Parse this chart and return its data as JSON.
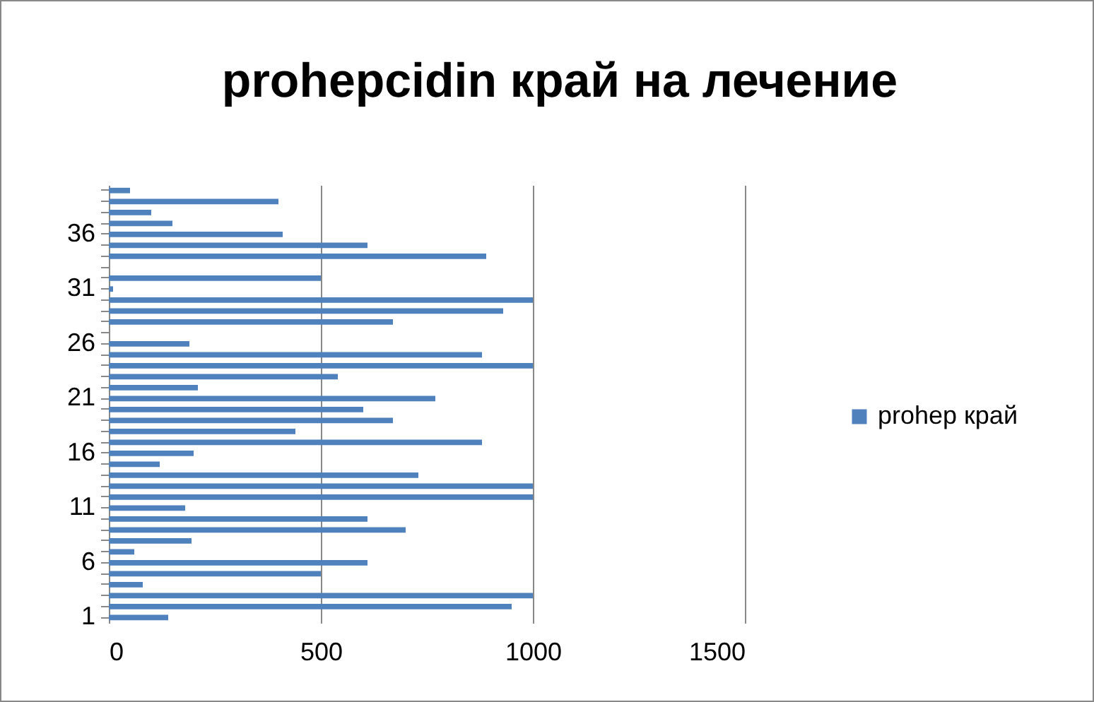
{
  "chart_data": {
    "type": "bar",
    "orientation": "horizontal",
    "title": "prohepcidin край на лечение",
    "categories": [
      null,
      null,
      null,
      null,
      "36",
      null,
      null,
      null,
      null,
      "31",
      null,
      null,
      null,
      null,
      "26",
      null,
      null,
      null,
      null,
      "21",
      null,
      null,
      null,
      null,
      "16",
      null,
      null,
      null,
      null,
      "11",
      null,
      null,
      null,
      null,
      "6",
      null,
      null,
      null,
      null,
      "1"
    ],
    "series": [
      {
        "name": "prohep край",
        "color": "#4f81bd",
        "values": [
          50,
          400,
          100,
          150,
          410,
          610,
          890,
          0,
          500,
          10,
          1000,
          930,
          670,
          0,
          190,
          880,
          1000,
          540,
          210,
          770,
          600,
          670,
          440,
          880,
          200,
          120,
          730,
          1000,
          1000,
          180,
          610,
          700,
          195,
          60,
          610,
          500,
          80,
          1000,
          950,
          140
        ]
      }
    ],
    "xlim": [
      0,
      1500
    ],
    "xticks": [
      0,
      500,
      1000,
      1500
    ],
    "grid": "x",
    "legend": "right"
  }
}
